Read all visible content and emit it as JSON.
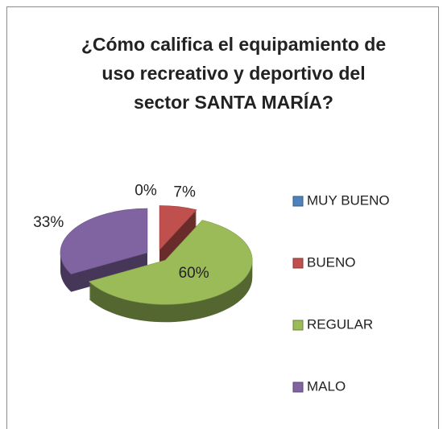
{
  "chart_data": {
    "type": "pie",
    "title": [
      "¿Cómo califica el equipamiento de",
      "uso recreativo y deportivo del",
      "sector SANTA MARÍA?"
    ],
    "categories": [
      "MUY BUENO",
      "BUENO",
      "REGULAR",
      "MALO"
    ],
    "values": [
      0,
      7,
      60,
      33
    ],
    "value_labels": [
      "0%",
      "7%",
      "60%",
      "33%"
    ],
    "colors": [
      "#4f81bd",
      "#c0504d",
      "#9bbb59",
      "#8064a2"
    ],
    "legend": "right"
  }
}
